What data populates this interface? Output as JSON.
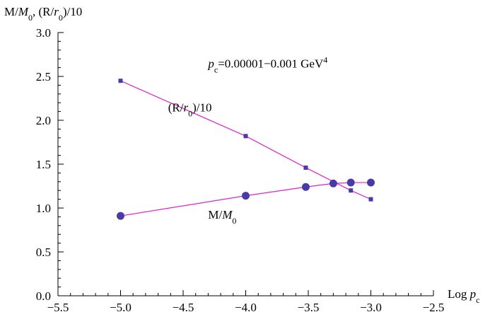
{
  "chart_data": {
    "type": "line",
    "title": "",
    "xlabel": {
      "prefix": "Log ",
      "var": "p",
      "sub": "c"
    },
    "ylabel": {
      "parts": [
        {
          "t": "M/",
          "i": false
        },
        {
          "t": "M",
          "i": true
        },
        {
          "t": "0",
          "sub": true
        },
        {
          "t": ", (R/",
          "i": false
        },
        {
          "t": "r",
          "i": true
        },
        {
          "t": "0",
          "sub": true
        },
        {
          "t": ")/10",
          "i": false
        }
      ]
    },
    "xlim": [
      -5.5,
      -2.5
    ],
    "ylim": [
      0.0,
      3.0
    ],
    "xticks": [
      -5.5,
      -5.0,
      -4.5,
      -4.0,
      -3.5,
      -3.0,
      -2.5
    ],
    "xtick_labels": [
      "−5.5",
      "−5.0",
      "−4.5",
      "−4.0",
      "−3.5",
      "−3.0",
      "−2.5"
    ],
    "yticks": [
      0.0,
      0.5,
      1.0,
      1.5,
      2.0,
      2.5,
      3.0
    ],
    "ytick_labels": [
      "0.0",
      "0.5",
      "1.0",
      "1.5",
      "2.0",
      "2.5",
      "3.0"
    ],
    "grid": false,
    "line_color": "#e020d0",
    "marker_color": "#4a3aa8",
    "series": [
      {
        "name": "(R/r0)/10",
        "marker": "square",
        "x": [
          -5.0,
          -4.0,
          -3.52,
          -3.16,
          -3.0
        ],
        "y": [
          2.45,
          1.82,
          1.46,
          1.2,
          1.1
        ]
      },
      {
        "name": "M/M0",
        "marker": "circle",
        "x": [
          -5.0,
          -4.0,
          -3.52,
          -3.3,
          -3.16,
          -3.0
        ],
        "y": [
          0.91,
          1.14,
          1.24,
          1.28,
          1.29,
          1.29
        ]
      }
    ],
    "annotations": [
      {
        "id": "range",
        "parts": [
          {
            "t": "p",
            "i": true
          },
          {
            "t": "c",
            "sub": true
          },
          {
            "t": "=0.00001−0.001 GeV"
          },
          {
            "t": "4",
            "sup": true
          }
        ],
        "x": -4.3,
        "y": 2.6
      },
      {
        "id": "r-label",
        "parts": [
          {
            "t": "(R/"
          },
          {
            "t": "r",
            "i": true
          },
          {
            "t": "0",
            "sub": true
          },
          {
            "t": ")/10"
          }
        ],
        "x": -4.62,
        "y": 2.1
      },
      {
        "id": "m-label",
        "parts": [
          {
            "t": "M/"
          },
          {
            "t": "M",
            "i": true
          },
          {
            "t": "0",
            "sub": true
          }
        ],
        "x": -4.3,
        "y": 0.88
      }
    ]
  }
}
